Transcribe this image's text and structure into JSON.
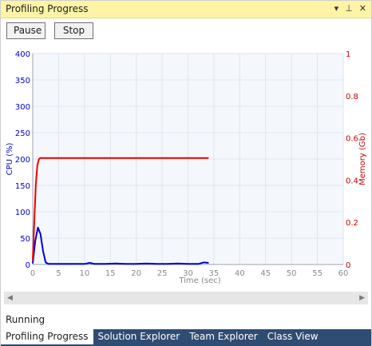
{
  "window": {
    "title": "Profiling Progress"
  },
  "title_icons": {
    "dropdown": "▾",
    "pin": "⊥",
    "close": "✕"
  },
  "toolbar": {
    "pause_label": "Pause",
    "stop_label": "Stop"
  },
  "status": {
    "text": "Running"
  },
  "tabs": [
    {
      "label": "Profiling Progress",
      "active": true
    },
    {
      "label": "Solution Explorer",
      "active": false
    },
    {
      "label": "Team Explorer",
      "active": false
    },
    {
      "label": "Class View",
      "active": false
    }
  ],
  "chart_data": {
    "type": "line",
    "xlabel": "Time (sec)",
    "xlim": [
      0,
      60
    ],
    "xticks": [
      0,
      5,
      10,
      15,
      20,
      25,
      30,
      35,
      40,
      45,
      50,
      55,
      60
    ],
    "y_left": {
      "label": "CPU (%)",
      "lim": [
        0,
        400
      ],
      "ticks": [
        0,
        50,
        100,
        150,
        200,
        250,
        300,
        350,
        400
      ],
      "color": "#0000cc"
    },
    "y_right": {
      "label": "Memory (Gb)",
      "lim": [
        0,
        1
      ],
      "ticks": [
        "0",
        "0.2",
        "0.4",
        "0.6",
        "0.8",
        "1"
      ],
      "color": "#cc0000"
    },
    "grid": true,
    "series": [
      {
        "axis": "left",
        "color": "#0000dd",
        "x": [
          0,
          0.5,
          1,
          1.5,
          2,
          2.5,
          3,
          4,
          6,
          8,
          10,
          11,
          12,
          14,
          16,
          18,
          20,
          22,
          24,
          26,
          28,
          30,
          32,
          33,
          34
        ],
        "y": [
          2,
          45,
          70,
          58,
          25,
          4,
          1,
          1,
          1,
          1,
          1,
          3,
          1,
          1,
          2,
          1,
          1,
          2,
          1,
          1,
          2,
          1,
          1,
          4,
          3
        ]
      },
      {
        "axis": "right",
        "color": "#ee0000",
        "x": [
          0,
          0.3,
          0.6,
          0.9,
          1.2,
          1.5,
          2,
          5,
          10,
          20,
          30,
          34
        ],
        "y": [
          0.02,
          0.2,
          0.38,
          0.47,
          0.5,
          0.505,
          0.505,
          0.505,
          0.505,
          0.505,
          0.505,
          0.505
        ]
      }
    ]
  }
}
